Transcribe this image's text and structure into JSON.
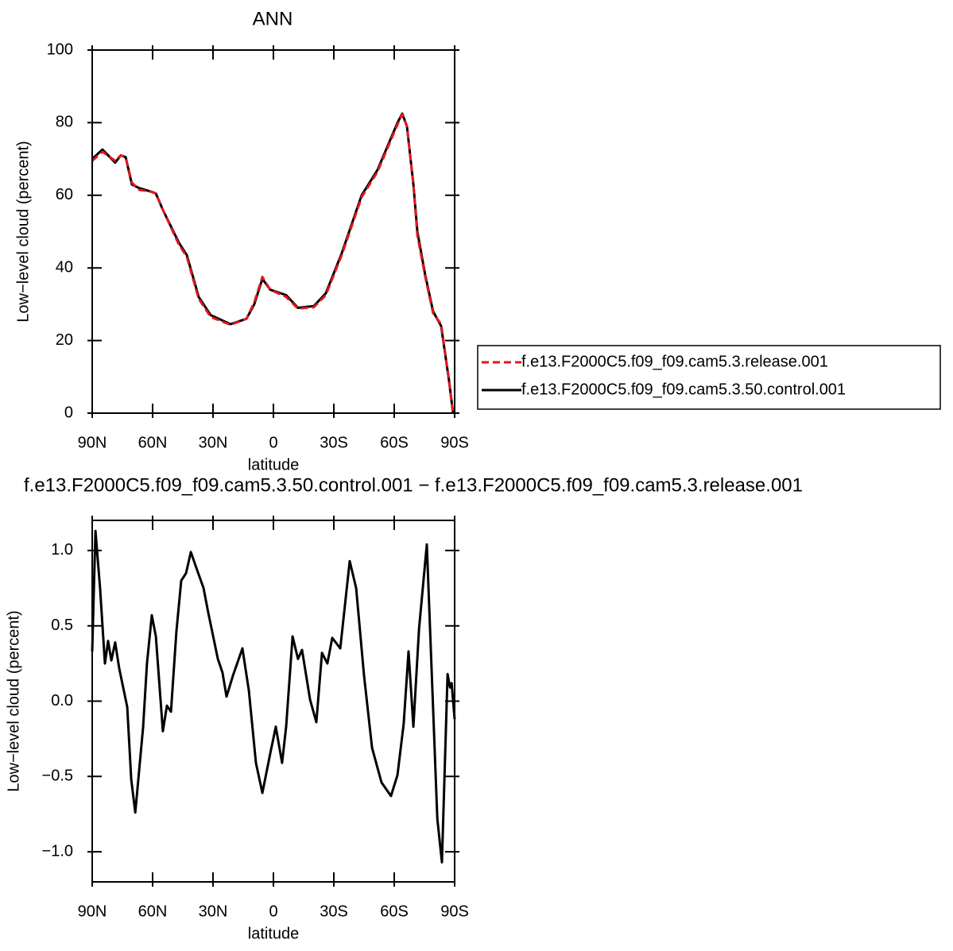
{
  "chart_data": [
    {
      "type": "line",
      "title": "ANN",
      "xlabel": "latitude",
      "ylabel": "Low−level cloud (percent)",
      "x": [
        90,
        84.9,
        78.6,
        75.8,
        73.4,
        70.3,
        66.7,
        60.8,
        58.4,
        54.9,
        47.0,
        43.0,
        37.1,
        31.2,
        21.3,
        13.4,
        9.5,
        5.5,
        1.6,
        -6.3,
        -12.2,
        -20.1,
        -26.0,
        -33.9,
        -43.8,
        -51.7,
        -61.6,
        -64.0,
        -66.3,
        -69.5,
        -71.5,
        -75.4,
        -79.3,
        -83.3,
        -87.2,
        -89.2
      ],
      "series": [
        {
          "name": "f.e13.F2000C5.f09_f09.cam5.3.release.001",
          "color": "#e8141b",
          "style": "dashed",
          "values": [
            69.5,
            72,
            69.5,
            71,
            70.5,
            63.5,
            61.5,
            61,
            60.5,
            56,
            46.5,
            43,
            31.5,
            26.5,
            24.3,
            26,
            30.5,
            37.5,
            34,
            32,
            28.8,
            29.2,
            32.5,
            43.5,
            59.5,
            66.5,
            79.5,
            82.3,
            79,
            63,
            49,
            37.5,
            27.5,
            24.5,
            9,
            0
          ]
        },
        {
          "name": "f.e13.F2000C5.f09_f09.cam5.3.50.control.001",
          "color": "#000000",
          "style": "solid",
          "values": [
            70,
            72.6,
            69,
            71,
            70.5,
            63,
            62,
            61,
            60.5,
            56,
            47,
            43.5,
            32,
            27,
            24.5,
            26,
            30,
            37,
            34,
            32.5,
            29,
            29.5,
            33,
            44,
            60,
            67,
            80,
            82.5,
            79,
            63,
            50,
            38,
            28,
            24,
            9,
            0
          ]
        }
      ],
      "xlim": [
        90,
        -90
      ],
      "ylim": [
        0,
        100
      ],
      "xticks": [
        {
          "value": 90,
          "label": "90N"
        },
        {
          "value": 60,
          "label": "60N"
        },
        {
          "value": 30,
          "label": "30N"
        },
        0,
        {
          "value": -30,
          "label": "30S"
        },
        {
          "value": -60,
          "label": "60S"
        },
        {
          "value": -90,
          "label": "90S"
        }
      ],
      "yticks": [
        0,
        20,
        40,
        60,
        80,
        100
      ],
      "legend": "outside right"
    },
    {
      "type": "line",
      "title": "f.e13.F2000C5.f09_f09.cam5.3.50.control.001 − f.e13.F2000C5.f09_f09.cam5.3.release.001",
      "xlabel": "latitude",
      "ylabel": "Low−level cloud (percent)",
      "x": [
        90,
        88.4,
        86.1,
        83.7,
        82.1,
        80.5,
        78.6,
        76.6,
        74.6,
        72.6,
        70.6,
        68.6,
        64.7,
        62.8,
        60.4,
        58.4,
        54.9,
        52.9,
        50.9,
        48.2,
        45.8,
        43.4,
        41.0,
        38.7,
        34.7,
        32.4,
        27.6,
        25.3,
        23.3,
        20.1,
        15.4,
        12.2,
        8.7,
        5.5,
        1.6,
        -1.2,
        -4.3,
        -6.3,
        -9.5,
        -12.2,
        -14.2,
        -18.2,
        -21.3,
        -24.1,
        -26.8,
        -29.2,
        -33.2,
        -37.9,
        -41.1,
        -45.0,
        -49.0,
        -53.7,
        -58.4,
        -61.6,
        -64.7,
        -67.1,
        -69.5,
        -72.3,
        -76.2,
        -81.4,
        -83.7,
        -86.5,
        -87.7,
        -88.5,
        -90
      ],
      "values": [
        0.33,
        1.13,
        0.75,
        0.25,
        0.4,
        0.27,
        0.39,
        0.22,
        0.09,
        -0.04,
        -0.52,
        -0.74,
        -0.17,
        0.25,
        0.57,
        0.43,
        -0.2,
        -0.03,
        -0.07,
        0.46,
        0.8,
        0.85,
        0.99,
        0.9,
        0.75,
        0.59,
        0.28,
        0.19,
        0.03,
        0.17,
        0.35,
        0.07,
        -0.41,
        -0.61,
        -0.35,
        -0.17,
        -0.41,
        -0.17,
        0.43,
        0.28,
        0.34,
        0.01,
        -0.14,
        0.32,
        0.25,
        0.42,
        0.35,
        0.93,
        0.75,
        0.17,
        -0.31,
        -0.54,
        -0.63,
        -0.49,
        -0.15,
        0.33,
        -0.17,
        0.48,
        1.04,
        -0.78,
        -1.07,
        0.18,
        0.09,
        0.12,
        -0.12
      ],
      "color": "#000000",
      "xlim": [
        90,
        -90
      ],
      "ylim": [
        -1.2,
        1.2
      ],
      "xticks": [
        {
          "value": 90,
          "label": "90N"
        },
        {
          "value": 60,
          "label": "60N"
        },
        {
          "value": 30,
          "label": "30N"
        },
        0,
        {
          "value": -30,
          "label": "30S"
        },
        {
          "value": -60,
          "label": "60S"
        },
        {
          "value": -90,
          "label": "90S"
        }
      ],
      "yticks": [
        {
          "value": -1.0,
          "label": "−1.0"
        },
        {
          "value": -0.5,
          "label": "−0.5"
        },
        {
          "value": 0.0,
          "label": "0.0"
        },
        0.5,
        {
          "value": 1.0,
          "label": "1.0"
        }
      ]
    }
  ]
}
